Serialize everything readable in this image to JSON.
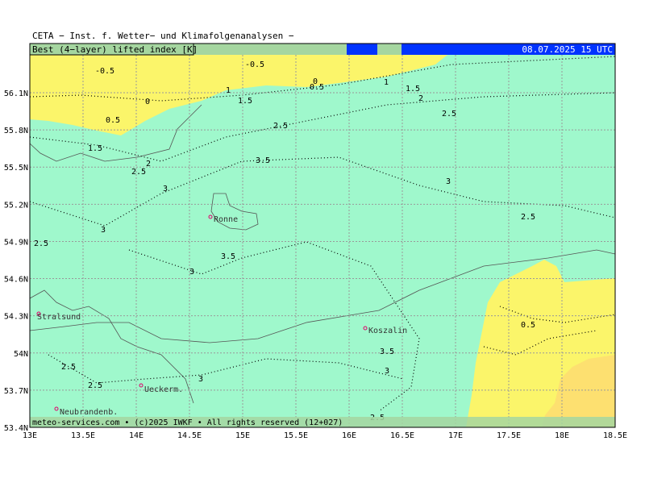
{
  "header": {
    "title": "CETA − Inst. f. Wetter− und Klimafolgenanalysen −",
    "field": "Best (4−layer) lifted index [K]",
    "time": "08.07.2025 15 UTC"
  },
  "footer": "meteo-services.com • (c)2025 IWKF • All rights reserved (12+027)",
  "axes": {
    "lat_ticks": [
      {
        "value": 56.1,
        "label": "56.1N"
      },
      {
        "value": 55.8,
        "label": "55.8N"
      },
      {
        "value": 55.5,
        "label": "55.5N"
      },
      {
        "value": 55.2,
        "label": "55.2N"
      },
      {
        "value": 54.9,
        "label": "54.9N"
      },
      {
        "value": 54.6,
        "label": "54.6N"
      },
      {
        "value": 54.3,
        "label": "54.3N"
      },
      {
        "value": 54,
        "label": "54N"
      },
      {
        "value": 53.7,
        "label": "53.7N"
      },
      {
        "value": 53.4,
        "label": "53.4N"
      }
    ],
    "lon_ticks": [
      {
        "value": 13,
        "label": "13E"
      },
      {
        "value": 13.5,
        "label": "13.5E"
      },
      {
        "value": 14,
        "label": "14E"
      },
      {
        "value": 14.5,
        "label": "14.5E"
      },
      {
        "value": 15,
        "label": "15E"
      },
      {
        "value": 15.5,
        "label": "15.5E"
      },
      {
        "value": 16,
        "label": "16E"
      },
      {
        "value": 16.5,
        "label": "16.5E"
      },
      {
        "value": 17,
        "label": "17E"
      },
      {
        "value": 17.5,
        "label": "17.5E"
      },
      {
        "value": 18,
        "label": "18E"
      },
      {
        "value": 18.5,
        "label": "18.5E"
      }
    ]
  },
  "cities": [
    "Ronne",
    "Stralsund",
    "Koszalin",
    "Ueckerm.",
    "Neubrandenb."
  ],
  "contour_labels": [
    "-0.5",
    "-0.5",
    "0",
    "0",
    "0.5",
    "0.5",
    "1",
    "1",
    "1.5",
    "1.5",
    "2",
    "2.5",
    "2.5",
    "1.5",
    "2",
    "2.5",
    "3.5",
    "3",
    "3",
    "2.5",
    "3",
    "2.5",
    "3.5",
    "3",
    "0.5",
    "3.5",
    "3",
    "2.5",
    "2.5",
    "3",
    "2.5"
  ]
}
